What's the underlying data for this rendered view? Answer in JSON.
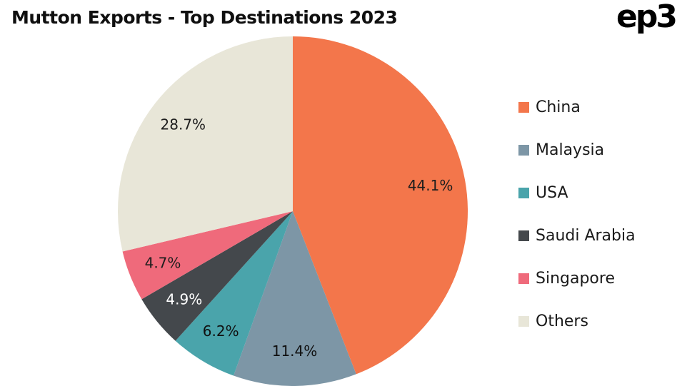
{
  "header": {
    "title": "Mutton Exports - Top Destinations 2023",
    "logo": "ep3"
  },
  "chart_data": {
    "type": "pie",
    "title": "Mutton Exports - Top Destinations 2023",
    "categories": [
      "China",
      "Malaysia",
      "USA",
      "Saudi Arabia",
      "Singapore",
      "Others"
    ],
    "values": [
      44.1,
      11.4,
      6.2,
      4.9,
      4.7,
      28.7
    ],
    "labels": [
      "44.1%",
      "11.4%",
      "6.2%",
      "4.9%",
      "4.7%",
      "28.7%"
    ],
    "colors": [
      "#f3764b",
      "#7d96a6",
      "#4aa4ab",
      "#44484c",
      "#ef6a7b",
      "#e8e6d8"
    ],
    "label_colors": [
      "#1d1d1d",
      "#101010",
      "#101010",
      "#ffffff",
      "#1d1d1d",
      "#1d1d1d"
    ],
    "start_angle_deg": 0,
    "direction": "clockwise",
    "legend_position": "right",
    "grid": false
  }
}
